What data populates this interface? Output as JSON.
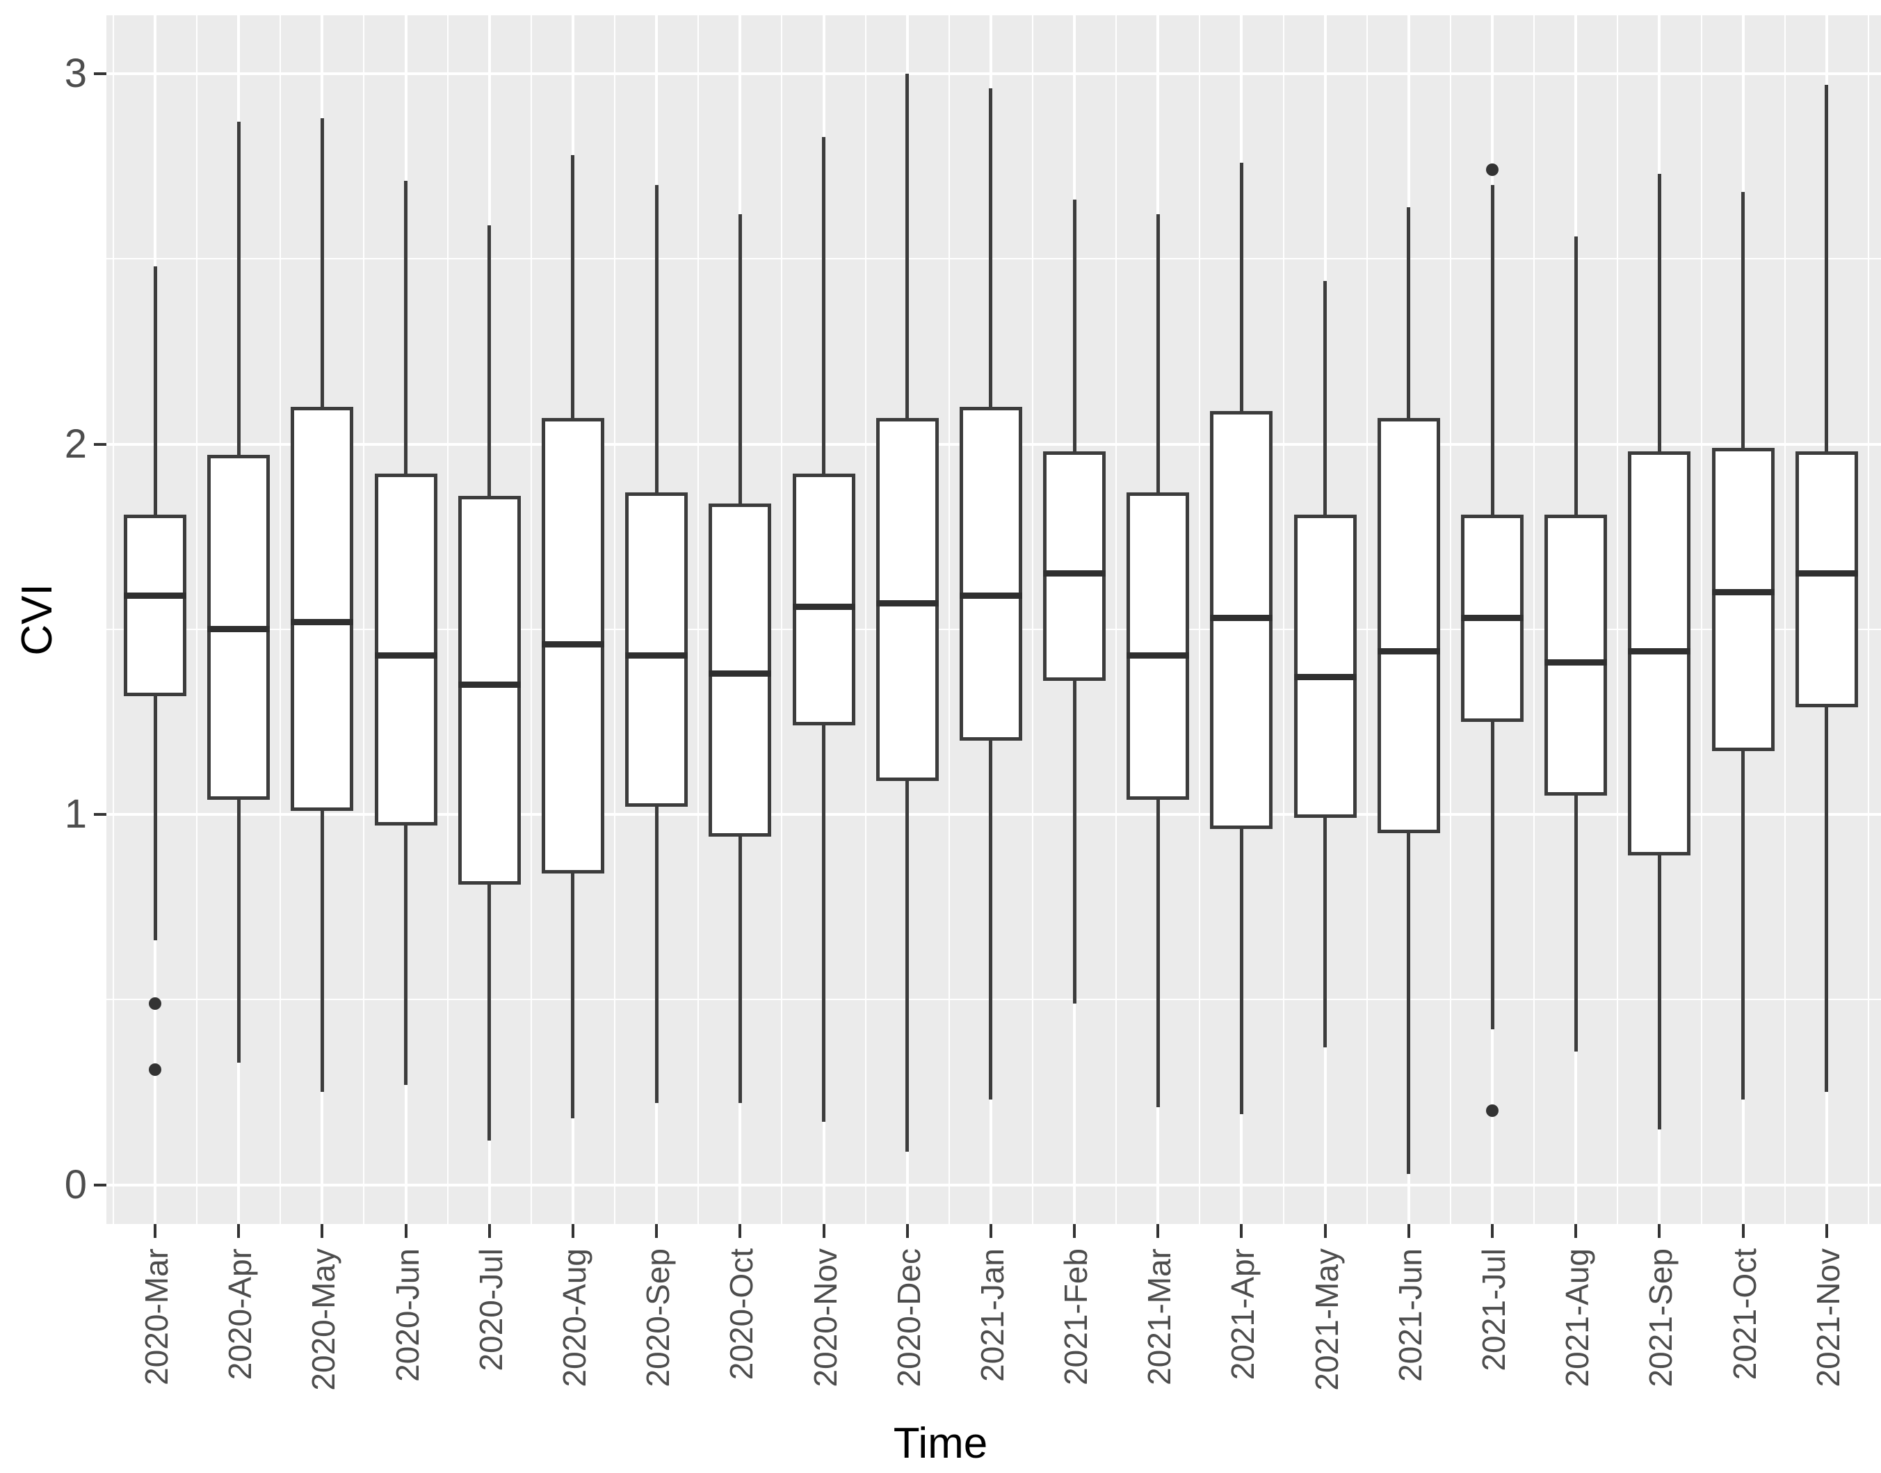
{
  "chart_data": {
    "type": "boxplot",
    "title": "",
    "xlabel": "Time",
    "ylabel": "CVI",
    "legend": "none",
    "grid": "on",
    "panel_bg": "#ebebeb",
    "grid_color": "#ffffff",
    "box_fill": "#ffffff",
    "box_border": "#3c3c3c",
    "text_color": "#4d4d4d",
    "yticks": [
      0,
      1,
      2,
      3
    ],
    "yminor": [
      0.5,
      1.5,
      2.5
    ],
    "ylim": [
      -0.11,
      3.16
    ],
    "categories": [
      "2020-Mar",
      "2020-Apr",
      "2020-May",
      "2020-Jun",
      "2020-Jul",
      "2020-Aug",
      "2020-Sep",
      "2020-Oct",
      "2020-Nov",
      "2020-Dec",
      "2021-Jan",
      "2021-Feb",
      "2021-Mar",
      "2021-Apr",
      "2021-May",
      "2021-Jun",
      "2021-Jul",
      "2021-Aug",
      "2021-Sep",
      "2021-Oct",
      "2021-Nov"
    ],
    "series": [
      {
        "category": "2020-Mar",
        "min": 0.66,
        "q1": 1.32,
        "median": 1.59,
        "q3": 1.81,
        "max": 2.48,
        "outliers": [
          0.49,
          0.31
        ]
      },
      {
        "category": "2020-Apr",
        "min": 0.33,
        "q1": 1.04,
        "median": 1.5,
        "q3": 1.97,
        "max": 2.87,
        "outliers": []
      },
      {
        "category": "2020-May",
        "min": 0.25,
        "q1": 1.01,
        "median": 1.52,
        "q3": 2.1,
        "max": 2.88,
        "outliers": []
      },
      {
        "category": "2020-Jun",
        "min": 0.27,
        "q1": 0.97,
        "median": 1.43,
        "q3": 1.92,
        "max": 2.71,
        "outliers": []
      },
      {
        "category": "2020-Jul",
        "min": 0.12,
        "q1": 0.81,
        "median": 1.35,
        "q3": 1.86,
        "max": 2.59,
        "outliers": []
      },
      {
        "category": "2020-Aug",
        "min": 0.18,
        "q1": 0.84,
        "median": 1.46,
        "q3": 2.07,
        "max": 2.78,
        "outliers": []
      },
      {
        "category": "2020-Sep",
        "min": 0.22,
        "q1": 1.02,
        "median": 1.43,
        "q3": 1.87,
        "max": 2.7,
        "outliers": []
      },
      {
        "category": "2020-Oct",
        "min": 0.22,
        "q1": 0.94,
        "median": 1.38,
        "q3": 1.84,
        "max": 2.62,
        "outliers": []
      },
      {
        "category": "2020-Nov",
        "min": 0.17,
        "q1": 1.24,
        "median": 1.56,
        "q3": 1.92,
        "max": 2.83,
        "outliers": []
      },
      {
        "category": "2020-Dec",
        "min": 0.09,
        "q1": 1.09,
        "median": 1.57,
        "q3": 2.07,
        "max": 3.0,
        "outliers": []
      },
      {
        "category": "2021-Jan",
        "min": 0.23,
        "q1": 1.2,
        "median": 1.59,
        "q3": 2.1,
        "max": 2.96,
        "outliers": []
      },
      {
        "category": "2021-Feb",
        "min": 0.49,
        "q1": 1.36,
        "median": 1.65,
        "q3": 1.98,
        "max": 2.66,
        "outliers": []
      },
      {
        "category": "2021-Mar",
        "min": 0.21,
        "q1": 1.04,
        "median": 1.43,
        "q3": 1.87,
        "max": 2.62,
        "outliers": []
      },
      {
        "category": "2021-Apr",
        "min": 0.19,
        "q1": 0.96,
        "median": 1.53,
        "q3": 2.09,
        "max": 2.76,
        "outliers": []
      },
      {
        "category": "2021-May",
        "min": 0.37,
        "q1": 0.99,
        "median": 1.37,
        "q3": 1.81,
        "max": 2.44,
        "outliers": []
      },
      {
        "category": "2021-Jun",
        "min": 0.03,
        "q1": 0.95,
        "median": 1.44,
        "q3": 2.07,
        "max": 2.64,
        "outliers": []
      },
      {
        "category": "2021-Jul",
        "min": 0.42,
        "q1": 1.25,
        "median": 1.53,
        "q3": 1.81,
        "max": 2.7,
        "outliers": [
          2.74,
          0.2
        ]
      },
      {
        "category": "2021-Aug",
        "min": 0.36,
        "q1": 1.05,
        "median": 1.41,
        "q3": 1.81,
        "max": 2.56,
        "outliers": []
      },
      {
        "category": "2021-Sep",
        "min": 0.15,
        "q1": 0.89,
        "median": 1.44,
        "q3": 1.98,
        "max": 2.73,
        "outliers": []
      },
      {
        "category": "2021-Oct",
        "min": 0.23,
        "q1": 1.17,
        "median": 1.6,
        "q3": 1.99,
        "max": 2.68,
        "outliers": []
      },
      {
        "category": "2021-Nov",
        "min": 0.25,
        "q1": 1.29,
        "median": 1.65,
        "q3": 1.98,
        "max": 2.97,
        "outliers": []
      }
    ]
  }
}
